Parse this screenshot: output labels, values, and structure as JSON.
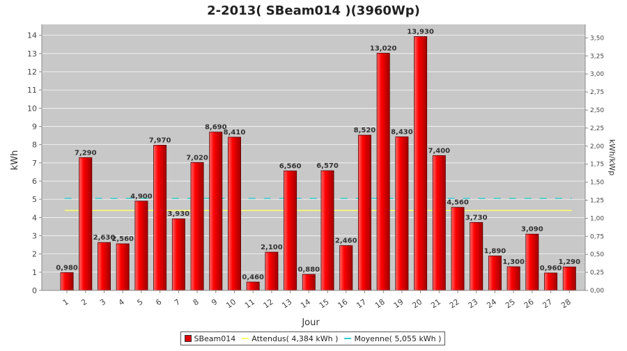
{
  "chart_data": {
    "type": "bar",
    "title": "2-2013( SBeam014 )(3960Wp)",
    "xlabel": "Jour",
    "ylabel": "kWh",
    "y2label": "kWh/kWp",
    "categories": [
      "1",
      "2",
      "3",
      "4",
      "5",
      "6",
      "7",
      "8",
      "9",
      "10",
      "11",
      "12",
      "13",
      "14",
      "15",
      "16",
      "17",
      "18",
      "19",
      "20",
      "21",
      "22",
      "23",
      "24",
      "25",
      "26",
      "27",
      "28"
    ],
    "series": [
      {
        "name": "SBeam014",
        "values": [
          0.98,
          7.29,
          2.63,
          2.56,
          4.9,
          7.97,
          3.93,
          7.02,
          8.69,
          8.41,
          0.46,
          2.1,
          6.56,
          0.88,
          6.57,
          2.46,
          8.52,
          13.02,
          8.43,
          13.93,
          7.4,
          4.56,
          3.73,
          1.89,
          1.3,
          3.09,
          0.96,
          1.29
        ],
        "labels": [
          "0,980",
          "7,290",
          "2,630",
          "2,560",
          "4,900",
          "7,970",
          "3,930",
          "7,020",
          "8,690",
          "8,410",
          "0,460",
          "2,100",
          "6,560",
          "0,880",
          "6,570",
          "2,460",
          "8,520",
          "13,020",
          "8,430",
          "13,930",
          "7,400",
          "4,560",
          "3,730",
          "1,890",
          "1,300",
          "3,090",
          "0,960",
          "1,290"
        ],
        "color": "#e00000"
      }
    ],
    "lines": [
      {
        "name": "Attendus( 4,384 kWh )",
        "value": 4.384,
        "color": "#ffff66",
        "style": "solid"
      },
      {
        "name": "Moyenne( 5,055 kWh )",
        "value": 5.055,
        "color": "#33cccc",
        "style": "dashed"
      }
    ],
    "ylim": [
      0,
      14.6
    ],
    "yticks": [
      0,
      1,
      2,
      3,
      4,
      5,
      6,
      7,
      8,
      9,
      10,
      11,
      12,
      13,
      14
    ],
    "y2ticks": [
      0,
      0.25,
      0.5,
      0.75,
      1,
      1.25,
      1.5,
      1.75,
      2,
      2.25,
      2.5,
      2.75,
      3,
      3.25,
      3.5
    ],
    "y2tick_labels": [
      "0,00",
      "0,25",
      "0,50",
      "0,75",
      "1,00",
      "1,25",
      "1,50",
      "1,75",
      "2,00",
      "2,25",
      "2,50",
      "2,75",
      "3,00",
      "3,25",
      "3,50"
    ],
    "y2_factor": 3.96,
    "grid": true,
    "legend_position": "bottom",
    "colors": {
      "background": "#c8c8c8",
      "grid": "#ffffff",
      "bar": "#e00000"
    }
  },
  "legend": {
    "bars": "SBeam014",
    "expected": "Attendus( 4,384 kWh )",
    "average": "Moyenne( 5,055 kWh )"
  }
}
